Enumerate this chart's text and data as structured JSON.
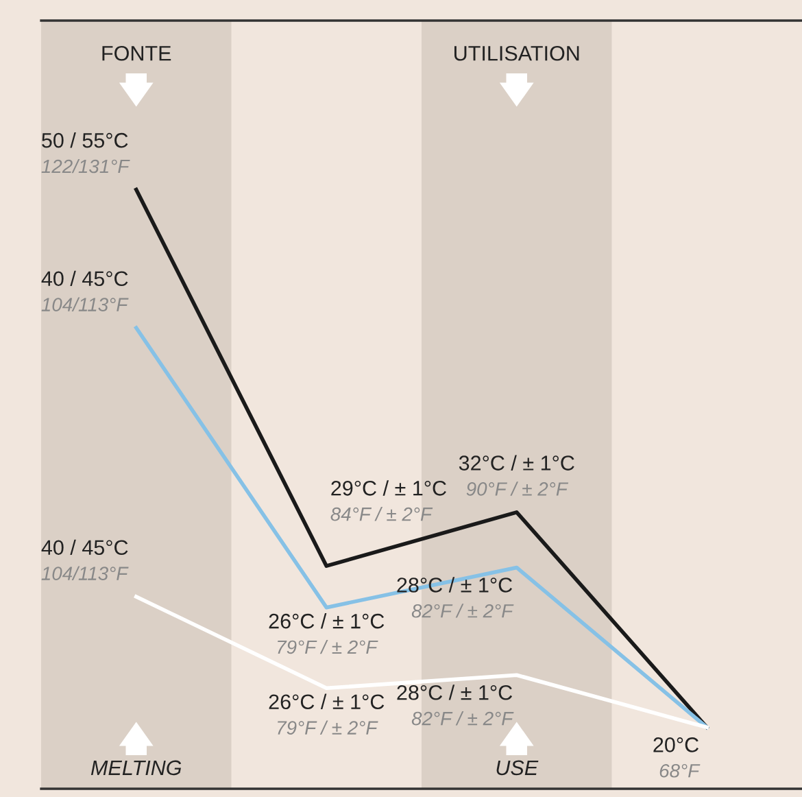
{
  "chart_data": [
    {
      "type": "line",
      "categories": [
        "FONTE",
        null,
        "UTILISATION",
        null
      ],
      "tick_labels": "x",
      "series": [
        {
          "color": "#1a1a1a",
          "values": [
            50,
            29,
            32,
            20
          ],
          "value_labels": [
            "50 / 55°C\n122/131°F",
            "29°C / ± 1°C\n84°F / ± 2°F",
            "32°C / ± 1°C\n90°F / ± 2°F",
            "20°C\n68°F"
          ]
        }
      ],
      "annotations": [
        "MELTING",
        "USE"
      ],
      "bands": [
        {
          "axis": "x",
          "from": "FONTE",
          "to": "FONTE",
          "color": "#dbd0c6"
        },
        {
          "axis": "x",
          "from": "UTILISATION",
          "to": "UTILISATION",
          "color": "#dbd0c6"
        }
      ],
      "marker": "none",
      "line_style": "solid",
      "legend": false
    },
    {
      "type": "line",
      "categories": [
        "FONTE",
        null,
        "UTILISATION",
        null
      ],
      "tick_labels": false,
      "series": [
        {
          "color": "#86c1e6",
          "values": [
            40,
            26,
            28,
            20
          ],
          "value_labels": [
            "40 / 45°C\n104/113°F",
            "26°C / ± 1°C\n79°F / ± 2°F",
            "28°C / ± 1°C\n82°F / ± 2°F",
            null
          ]
        }
      ],
      "marker": "none",
      "line_style": "solid",
      "legend": false
    },
    {
      "type": "line",
      "categories": [
        "FONTE",
        null,
        "UTILISATION",
        null
      ],
      "tick_labels": false,
      "series": [
        {
          "color": "#ffffff",
          "values": [
            40,
            26,
            28,
            20
          ],
          "value_labels": [
            "40 / 45°C\n104/113°F",
            "26°C / ± 1°C\n79°F / ± 2°F",
            "28°C / ± 1°C\n82°F / ± 2°F",
            null
          ]
        }
      ],
      "marker": "none",
      "line_style": "solid",
      "legend": false
    }
  ]
}
